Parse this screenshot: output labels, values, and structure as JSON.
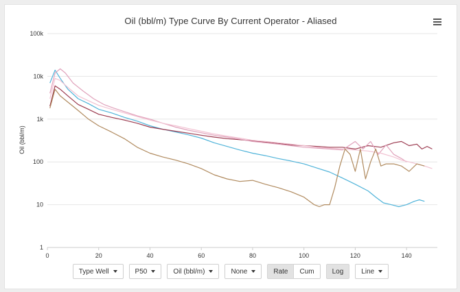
{
  "chart_data": {
    "type": "line",
    "title": "Oil (bbl/m) Type Curve By Current Operator - Aliased",
    "ylabel": "Oil (bbl/m)",
    "xlabel": "",
    "yscale": "log",
    "xlim": [
      0,
      152
    ],
    "ylim": [
      1,
      100000
    ],
    "xticks": [
      "0",
      "20",
      "40",
      "60",
      "80",
      "100",
      "120",
      "140"
    ],
    "yticks": [
      "1",
      "10",
      "100",
      "1k",
      "10k",
      "100k"
    ],
    "grid": "horizontal",
    "series": [
      {
        "color": "#4fb3d9",
        "x": [
          1,
          3,
          5,
          8,
          12,
          16,
          20,
          25,
          30,
          35,
          40,
          45,
          50,
          55,
          60,
          65,
          70,
          75,
          80,
          85,
          90,
          95,
          100,
          105,
          110,
          115,
          120,
          125,
          128,
          131,
          134,
          137,
          140,
          143,
          145,
          147
        ],
        "y": [
          7000,
          14000,
          9000,
          5000,
          3000,
          2300,
          1700,
          1400,
          1100,
          900,
          700,
          580,
          500,
          430,
          360,
          280,
          230,
          190,
          160,
          140,
          120,
          105,
          90,
          72,
          58,
          42,
          30,
          21,
          15,
          11,
          10,
          9,
          10,
          12,
          13,
          12
        ]
      },
      {
        "color": "#9b3a4f",
        "x": [
          1,
          3,
          5,
          8,
          12,
          16,
          20,
          25,
          30,
          35,
          40,
          45,
          50,
          55,
          60,
          65,
          70,
          75,
          80,
          85,
          90,
          95,
          100,
          105,
          110,
          115,
          120,
          125,
          130,
          135,
          138,
          141,
          144,
          146,
          148,
          150
        ],
        "y": [
          2000,
          6000,
          5000,
          3500,
          2200,
          1700,
          1300,
          1100,
          950,
          800,
          650,
          580,
          520,
          470,
          420,
          380,
          350,
          330,
          310,
          290,
          270,
          250,
          240,
          230,
          220,
          220,
          200,
          240,
          220,
          280,
          300,
          240,
          260,
          200,
          230,
          200
        ]
      },
      {
        "color": "#e0a2bb",
        "x": [
          1,
          3,
          5,
          7,
          10,
          14,
          18,
          22,
          26,
          30,
          35,
          40,
          45,
          50,
          55,
          60,
          65,
          70,
          75,
          80,
          85,
          90,
          95,
          100,
          105,
          110,
          115,
          120,
          123,
          126,
          129,
          132,
          135,
          138,
          140
        ],
        "y": [
          4000,
          12000,
          15000,
          12000,
          7000,
          4500,
          3000,
          2200,
          1800,
          1500,
          1200,
          1000,
          800,
          650,
          550,
          480,
          420,
          380,
          340,
          300,
          280,
          260,
          240,
          220,
          210,
          200,
          190,
          300,
          200,
          300,
          150,
          250,
          150,
          120,
          100
        ]
      },
      {
        "color": "#f2c2d2",
        "x": [
          1,
          3,
          5,
          8,
          12,
          16,
          20,
          25,
          30,
          35,
          40,
          45,
          50,
          55,
          60,
          65,
          70,
          75,
          80,
          85,
          90,
          95,
          100,
          105,
          110,
          115,
          120,
          125,
          130,
          135,
          138,
          141,
          144,
          147,
          150
        ],
        "y": [
          3000,
          9000,
          8000,
          5500,
          3500,
          2700,
          2100,
          1700,
          1400,
          1150,
          950,
          800,
          700,
          600,
          520,
          450,
          400,
          360,
          320,
          300,
          280,
          260,
          240,
          220,
          210,
          200,
          190,
          180,
          160,
          130,
          110,
          100,
          90,
          80,
          70
        ]
      },
      {
        "color": "#b08a5e",
        "x": [
          1,
          3,
          5,
          8,
          12,
          16,
          20,
          25,
          30,
          35,
          40,
          45,
          50,
          55,
          60,
          65,
          70,
          75,
          80,
          85,
          90,
          95,
          100,
          104,
          106,
          108,
          110,
          112,
          114,
          116,
          118,
          120,
          122,
          124,
          126,
          128,
          130,
          132,
          135,
          138,
          141,
          144,
          147
        ],
        "y": [
          1800,
          5000,
          3500,
          2500,
          1600,
          1000,
          700,
          500,
          350,
          220,
          160,
          130,
          110,
          90,
          70,
          50,
          40,
          35,
          37,
          30,
          25,
          20,
          15,
          10,
          9,
          10,
          10,
          25,
          80,
          200,
          150,
          60,
          200,
          40,
          100,
          200,
          80,
          90,
          90,
          80,
          60,
          90,
          80
        ]
      }
    ]
  },
  "controls": {
    "type_well": "Type Well",
    "p50": "P50",
    "oil_unit": "Oil (bbl/m)",
    "none": "None",
    "rate": "Rate",
    "cum": "Cum",
    "log": "Log",
    "line": "Line"
  },
  "colors": {
    "axis": "#cccccc",
    "grid": "#e6e6e6",
    "text": "#333333"
  }
}
